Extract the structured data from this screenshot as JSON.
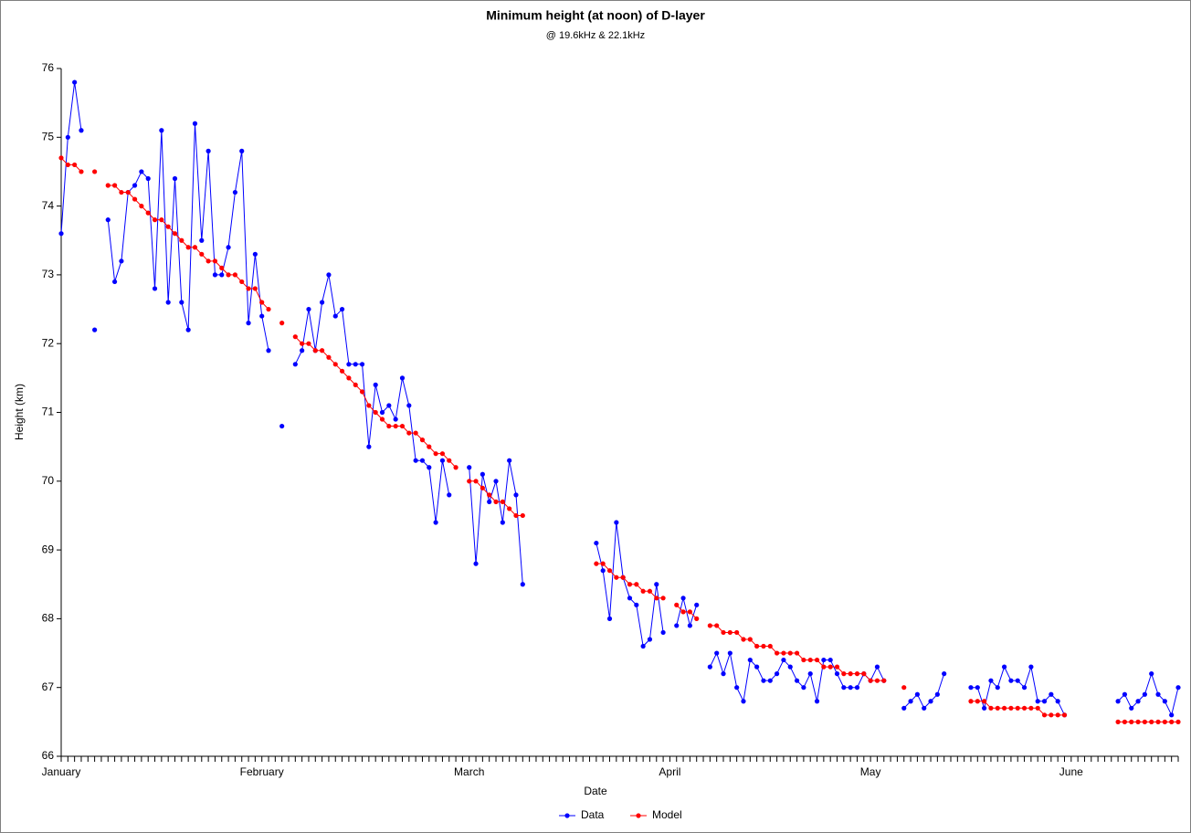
{
  "chart_data": {
    "type": "line",
    "title": "Minimum height (at noon) of D-layer",
    "subtitle": "@ 19.6kHz & 22.1kHz",
    "x_label": "Date",
    "y_label": "Height (km)",
    "categories": [
      "January",
      null,
      null,
      null,
      null,
      null,
      null,
      null,
      null,
      null,
      null,
      null,
      null,
      null,
      null,
      null,
      null,
      null,
      null,
      null,
      null,
      null,
      null,
      null,
      null,
      null,
      null,
      null,
      null,
      null,
      "February",
      null,
      null,
      null,
      null,
      null,
      null,
      null,
      null,
      null,
      null,
      null,
      null,
      null,
      null,
      null,
      null,
      null,
      null,
      null,
      null,
      null,
      null,
      null,
      null,
      null,
      null,
      null,
      null,
      null,
      null,
      "March",
      null,
      null,
      null,
      null,
      null,
      null,
      null,
      null,
      null,
      null,
      null,
      null,
      null,
      null,
      null,
      null,
      null,
      null,
      null,
      null,
      null,
      null,
      null,
      null,
      null,
      null,
      null,
      null,
      null,
      "April",
      null,
      null,
      null,
      null,
      null,
      null,
      null,
      null,
      null,
      null,
      null,
      null,
      null,
      null,
      null,
      null,
      null,
      null,
      null,
      null,
      null,
      null,
      null,
      null,
      null,
      null,
      null,
      null,
      null,
      "May",
      null,
      null,
      null,
      null,
      null,
      null,
      null,
      null,
      null,
      null,
      null,
      null,
      null,
      null,
      null,
      null,
      null,
      null,
      null,
      null,
      null,
      null,
      null,
      null,
      null,
      null,
      null,
      null,
      null,
      "June",
      null,
      null,
      null,
      null,
      null,
      null,
      null,
      null,
      null,
      null,
      null,
      null,
      null,
      null,
      null,
      null
    ],
    "series": [
      {
        "name": "Data",
        "color": "#0000ff",
        "values": [
          73.6,
          75.0,
          75.8,
          75.1,
          null,
          72.2,
          null,
          73.8,
          72.9,
          73.2,
          74.2,
          74.3,
          74.5,
          74.4,
          72.8,
          75.1,
          72.6,
          74.4,
          72.6,
          72.2,
          75.2,
          73.5,
          74.8,
          73.0,
          73.0,
          73.4,
          74.2,
          74.8,
          72.3,
          73.3,
          72.4,
          71.9,
          null,
          70.8,
          null,
          71.7,
          71.9,
          72.5,
          71.9,
          72.6,
          73.0,
          72.4,
          72.5,
          71.7,
          71.7,
          71.7,
          70.5,
          71.4,
          71.0,
          71.1,
          70.9,
          71.5,
          71.1,
          70.3,
          70.3,
          70.2,
          69.4,
          70.3,
          69.8,
          null,
          null,
          70.2,
          68.8,
          70.1,
          69.7,
          70.0,
          69.4,
          70.3,
          69.8,
          68.5,
          null,
          null,
          null,
          null,
          null,
          null,
          null,
          null,
          null,
          null,
          69.1,
          68.7,
          68.0,
          69.4,
          68.6,
          68.3,
          68.2,
          67.6,
          67.7,
          68.5,
          67.8,
          null,
          67.9,
          68.3,
          67.9,
          68.2,
          null,
          67.3,
          67.5,
          67.2,
          67.5,
          67.0,
          66.8,
          67.4,
          67.3,
          67.1,
          67.1,
          67.2,
          67.4,
          67.3,
          67.1,
          67.0,
          67.2,
          66.8,
          67.4,
          67.4,
          67.2,
          67.0,
          67.0,
          67.0,
          67.2,
          67.1,
          67.3,
          67.1,
          null,
          null,
          66.7,
          66.8,
          66.9,
          66.7,
          66.8,
          66.9,
          67.2,
          null,
          null,
          null,
          67.0,
          67.0,
          66.7,
          67.1,
          67.0,
          67.3,
          67.1,
          67.1,
          67.0,
          67.3,
          66.8,
          66.8,
          66.9,
          66.8,
          66.6,
          null,
          null,
          null,
          null,
          null,
          null,
          null,
          66.8,
          66.9,
          66.7,
          66.8,
          66.9,
          67.2,
          66.9,
          66.8,
          66.6,
          67.0
        ]
      },
      {
        "name": "Model",
        "color": "#ff0000",
        "values": [
          74.7,
          74.6,
          74.6,
          74.5,
          null,
          74.5,
          null,
          74.3,
          74.3,
          74.2,
          74.2,
          74.1,
          74.0,
          73.9,
          73.8,
          73.8,
          73.7,
          73.6,
          73.5,
          73.4,
          73.4,
          73.3,
          73.2,
          73.2,
          73.1,
          73.0,
          73.0,
          72.9,
          72.8,
          72.8,
          72.6,
          72.5,
          null,
          72.3,
          null,
          72.1,
          72.0,
          72.0,
          71.9,
          71.9,
          71.8,
          71.7,
          71.6,
          71.5,
          71.4,
          71.3,
          71.1,
          71.0,
          70.9,
          70.8,
          70.8,
          70.8,
          70.7,
          70.7,
          70.6,
          70.5,
          70.4,
          70.4,
          70.3,
          70.2,
          null,
          70.0,
          70.0,
          69.9,
          69.8,
          69.7,
          69.7,
          69.6,
          69.5,
          69.5,
          null,
          null,
          null,
          null,
          null,
          null,
          null,
          null,
          null,
          null,
          68.8,
          68.8,
          68.7,
          68.6,
          68.6,
          68.5,
          68.5,
          68.4,
          68.4,
          68.3,
          68.3,
          null,
          68.2,
          68.1,
          68.1,
          68.0,
          null,
          67.9,
          67.9,
          67.8,
          67.8,
          67.8,
          67.7,
          67.7,
          67.6,
          67.6,
          67.6,
          67.5,
          67.5,
          67.5,
          67.5,
          67.4,
          67.4,
          67.4,
          67.3,
          67.3,
          67.3,
          67.2,
          67.2,
          67.2,
          67.2,
          67.1,
          67.1,
          67.1,
          null,
          null,
          67.0,
          null,
          null,
          null,
          null,
          null,
          null,
          null,
          null,
          null,
          66.8,
          66.8,
          66.8,
          66.7,
          66.7,
          66.7,
          66.7,
          66.7,
          66.7,
          66.7,
          66.7,
          66.6,
          66.6,
          66.6,
          66.6,
          null,
          null,
          null,
          null,
          null,
          null,
          null,
          66.5,
          66.5,
          66.5,
          66.5,
          66.5,
          66.5,
          66.5,
          66.5,
          66.5,
          66.5
        ]
      }
    ],
    "ylim": [
      66,
      76
    ],
    "yticks": [
      66,
      67,
      68,
      69,
      70,
      71,
      72,
      73,
      74,
      75,
      76
    ],
    "grid": false,
    "legend": "bottom"
  }
}
